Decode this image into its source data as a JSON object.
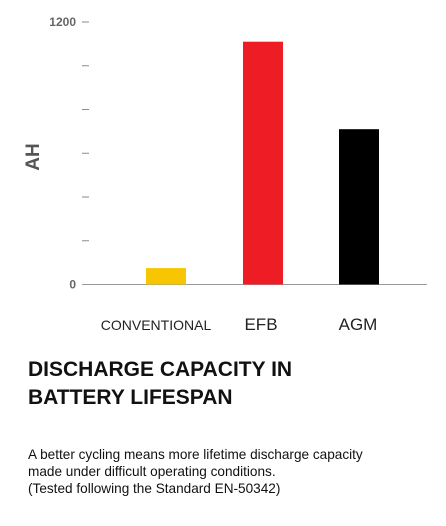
{
  "chart_data": {
    "type": "bar",
    "categories": [
      "CONVENTIONAL",
      "EFB",
      "AGM"
    ],
    "values": [
      75,
      1110,
      710
    ],
    "colors": [
      "#F7C600",
      "#EE1C25",
      "#000000"
    ],
    "ylabel": "AH",
    "xlabel": "",
    "ylim": [
      0,
      1200
    ],
    "yticks": [
      0,
      200,
      400,
      600,
      800,
      1000,
      1200
    ],
    "ytick_labels": [
      "0",
      "",
      "",
      "",
      "",
      "",
      "1200"
    ],
    "grid": false
  },
  "text": {
    "heading_line1": "DISCHARGE CAPACITY IN",
    "heading_line2": "BATTERY LIFESPAN",
    "desc_line1": "A better cycling means more lifetime discharge capacity",
    "desc_line2": "made under difficult operating conditions.",
    "desc_line3": "(Tested following the Standard EN-50342)"
  }
}
